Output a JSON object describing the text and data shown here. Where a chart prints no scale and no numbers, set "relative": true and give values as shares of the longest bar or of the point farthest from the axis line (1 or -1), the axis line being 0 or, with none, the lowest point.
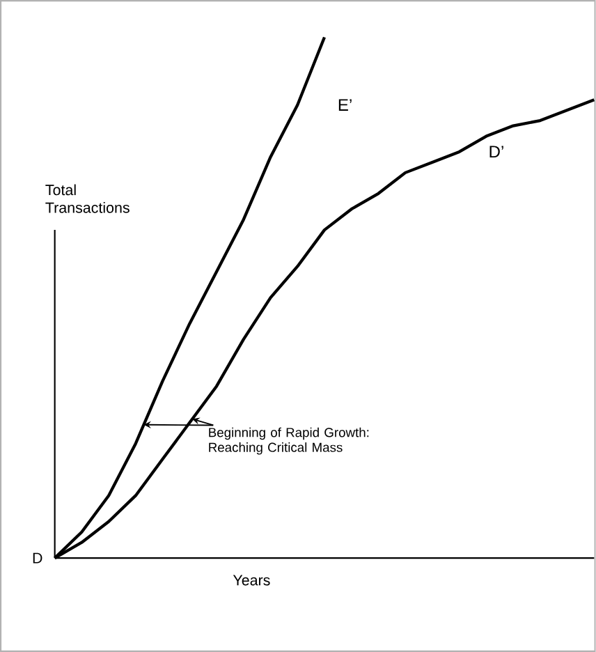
{
  "chart_data": {
    "type": "line",
    "relative": true,
    "ylabel": "Total Transactions",
    "xlabel": "Years",
    "categories": [
      null,
      null,
      null,
      null,
      null,
      null,
      null,
      null,
      null,
      null,
      null,
      null,
      null,
      null,
      null,
      null,
      null,
      null,
      null,
      null,
      null
    ],
    "series": [
      {
        "name": "E’",
        "color": "#000000",
        "values": [
          0,
          0.05,
          0.12,
          0.22,
          0.34,
          0.45,
          0.55,
          0.65,
          0.77,
          0.87,
          1,
          null,
          null,
          null,
          null,
          null,
          null,
          null,
          null,
          null,
          null
        ]
      },
      {
        "name": "D’",
        "color": "#000000",
        "values": [
          0,
          0.03,
          0.07,
          0.12,
          0.19,
          0.26,
          0.33,
          0.42,
          0.5,
          0.56,
          0.63,
          0.67,
          0.7,
          0.74,
          0.76,
          0.78,
          0.81,
          0.83,
          0.84,
          0.86,
          0.88
        ]
      }
    ],
    "annotations": [
      "D",
      "Beginning of Rapid Growth: Reaching Critical Mass"
    ],
    "marker": "none",
    "line_style": "solid"
  }
}
